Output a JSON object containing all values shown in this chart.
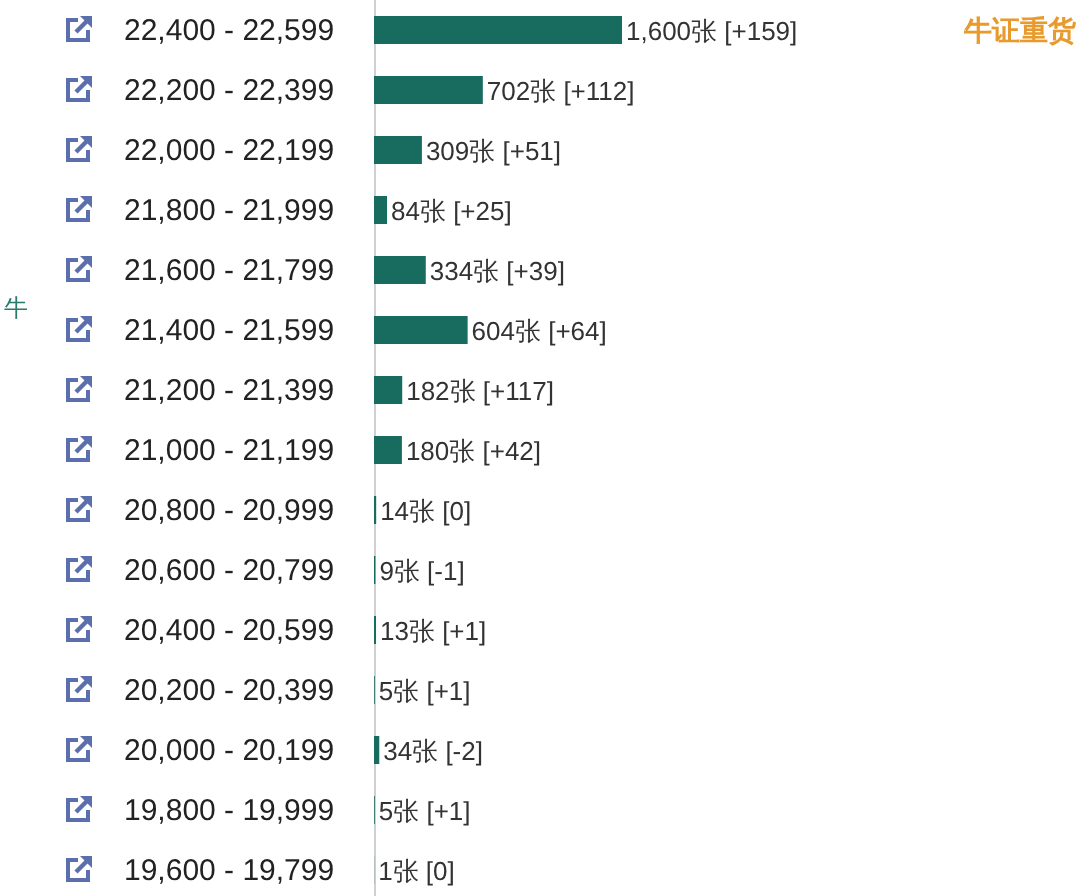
{
  "chart_data": {
    "type": "bar",
    "orientation": "horizontal",
    "title": "牛证重货",
    "ylabel": "牛",
    "categories": [
      "22,400 - 22,599",
      "22,200 - 22,399",
      "22,000 - 22,199",
      "21,800 - 21,999",
      "21,600 - 21,799",
      "21,400 - 21,599",
      "21,200 - 21,399",
      "21,000 - 21,199",
      "20,800 - 20,999",
      "20,600 - 20,799",
      "20,400 - 20,599",
      "20,200 - 20,399",
      "20,000 - 20,199",
      "19,800 - 19,999",
      "19,600 - 19,799"
    ],
    "values": [
      1600,
      702,
      309,
      84,
      334,
      604,
      182,
      180,
      14,
      9,
      13,
      5,
      34,
      5,
      1
    ],
    "color": "#176b5f",
    "value_labels": [
      "1,600张 [+159]",
      "702张 [+112]",
      "309张 [+51]",
      "84张 [+25]",
      "334张 [+39]",
      "604张 [+64]",
      "182张 [+117]",
      "180张 [+42]",
      "14张 [0]",
      "9张 [-1]",
      "13张 [+1]",
      "5张 [+1]",
      "34张 [-2]",
      "5张 [+1]",
      "1张 [0]"
    ]
  }
}
